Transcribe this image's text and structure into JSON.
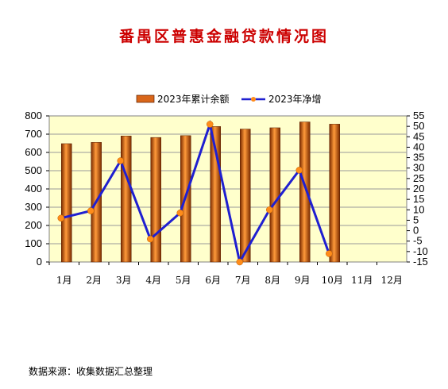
{
  "chart_data": {
    "type": "bar",
    "title": "番禺区普惠金融贷款情况图",
    "categories": [
      "1月",
      "2月",
      "3月",
      "4月",
      "5月",
      "6月",
      "7月",
      "8月",
      "9月",
      "10月",
      "11月",
      "12月"
    ],
    "series": [
      {
        "name": "2023年累计余额",
        "type": "bar",
        "axis": "left",
        "values": [
          648,
          655,
          690,
          682,
          692,
          742,
          728,
          735,
          767,
          755,
          null,
          null
        ],
        "color": "#d9661a"
      },
      {
        "name": "2023年净增",
        "type": "line",
        "axis": "right",
        "values": [
          6,
          9.5,
          33.5,
          -4,
          8.5,
          51,
          -15,
          10,
          29,
          -11,
          null,
          null
        ],
        "color": "#1f1fd0",
        "marker_color": "#ff8c1a"
      }
    ],
    "y_left": {
      "range": [
        0,
        800
      ],
      "ticks": [
        0,
        100,
        200,
        300,
        400,
        500,
        600,
        700,
        800
      ]
    },
    "y_right": {
      "range": [
        -15,
        55
      ],
      "ticks": [
        -15,
        -10,
        -5,
        0,
        5,
        10,
        15,
        20,
        25,
        30,
        35,
        40,
        45,
        50,
        55
      ]
    },
    "grid": true,
    "legend_position": "top",
    "plot_background": "#ffffcc"
  },
  "source_note": "数据来源：收集数据汇总整理"
}
